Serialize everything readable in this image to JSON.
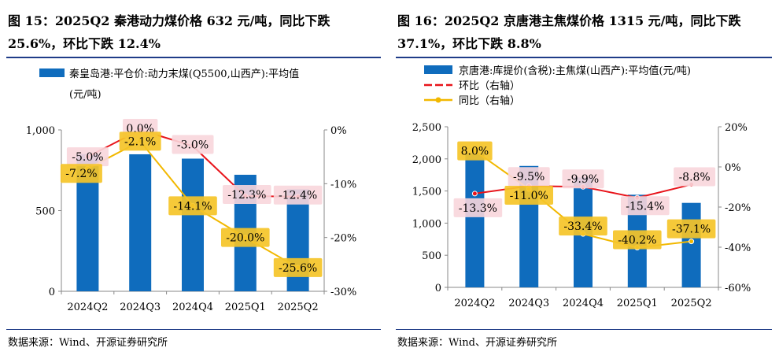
{
  "panels": [
    {
      "title_line1": "图 15：2025Q2 秦港动力煤价格 632 元/吨，同比下跌",
      "title_line2": "25.6%，环比下跌 12.4%",
      "source": "数据来源：Wind、开源证券研究所",
      "chart_data": {
        "type": "bar",
        "categories": [
          "2024Q2",
          "2024Q3",
          "2024Q4",
          "2025Q1",
          "2025Q2"
        ],
        "ylim_left": [
          0,
          1000
        ],
        "yticks_left": [
          "0",
          "500",
          "1,000"
        ],
        "ylim_right": [
          -30,
          0
        ],
        "yticks_right": [
          "-30%",
          "-20%",
          "-10%",
          "0%"
        ],
        "series": [
          {
            "name": "秦皇岛港:平仓价:动力末煤(Q5500,山西产):平均值(元/吨)",
            "kind": "bar",
            "axis": "left",
            "color": "#0f6cbd",
            "values": [
              850,
              849,
              822,
              722,
              632
            ]
          },
          {
            "name": "环比",
            "kind": "line",
            "axis": "right",
            "color": "#e8141b",
            "values": [
              -5.0,
              0.0,
              -3.0,
              -12.3,
              -12.4
            ],
            "labels": [
              "-5.0%",
              "0.0%",
              "-3.0%",
              "-12.3%",
              "-12.4%"
            ]
          },
          {
            "name": "同比",
            "kind": "line",
            "axis": "right",
            "color": "#f2b800",
            "values": [
              -7.2,
              -2.1,
              -14.1,
              -20.0,
              -25.6
            ],
            "labels": [
              "-7.2%",
              "-2.1%",
              "-14.1%",
              "-20.0%",
              "-25.6%"
            ]
          }
        ],
        "legend": [
          "秦皇岛港:平仓价:动力末煤(Q5500,山西产):平均值",
          "(元/吨)"
        ]
      }
    },
    {
      "title_line1": "图 16：2025Q2 京唐港主焦煤价格 1315 元/吨，同比下跌",
      "title_line2": "37.1%，环比下跌 8.8%",
      "source": "数据来源：Wind、开源证券研究所",
      "chart_data": {
        "type": "bar",
        "categories": [
          "2024Q2",
          "2024Q3",
          "2024Q4",
          "2025Q1",
          "2025Q2"
        ],
        "ylim_left": [
          0,
          2500
        ],
        "yticks_left": [
          "0",
          "500",
          "1,000",
          "1,500",
          "2,000",
          "2,500"
        ],
        "ylim_right": [
          -60,
          20
        ],
        "yticks_right": [
          "-60%",
          "-40%",
          "-20%",
          "0%",
          "20%"
        ],
        "series": [
          {
            "name": "京唐港:库提价(含税):主焦煤(山西产):平均值(元/吨)",
            "kind": "bar",
            "axis": "left",
            "color": "#0f6cbd",
            "values": [
              2088,
              1890,
              1710,
              1442,
              1315
            ]
          },
          {
            "name": "环比（右轴）",
            "kind": "line",
            "axis": "right",
            "color": "#e8141b",
            "dashed": true,
            "values": [
              -13.3,
              -9.5,
              -9.9,
              -15.4,
              -8.8
            ],
            "labels": [
              "-13.3%",
              "-9.5%",
              "-9.9%",
              "-15.4%",
              "-8.8%"
            ]
          },
          {
            "name": "同比（右轴）",
            "kind": "line",
            "axis": "right",
            "color": "#f2b800",
            "values": [
              8.0,
              -11.0,
              -33.4,
              -40.2,
              -37.1
            ],
            "labels": [
              "8.0%",
              "-11.0%",
              "-33.4%",
              "-40.2%",
              "-37.1%"
            ]
          }
        ],
        "legend": [
          "京唐港:库提价(含税):主焦煤(山西产):平均值(元/吨)",
          "环比（右轴）",
          "同比（右轴）"
        ]
      }
    }
  ]
}
